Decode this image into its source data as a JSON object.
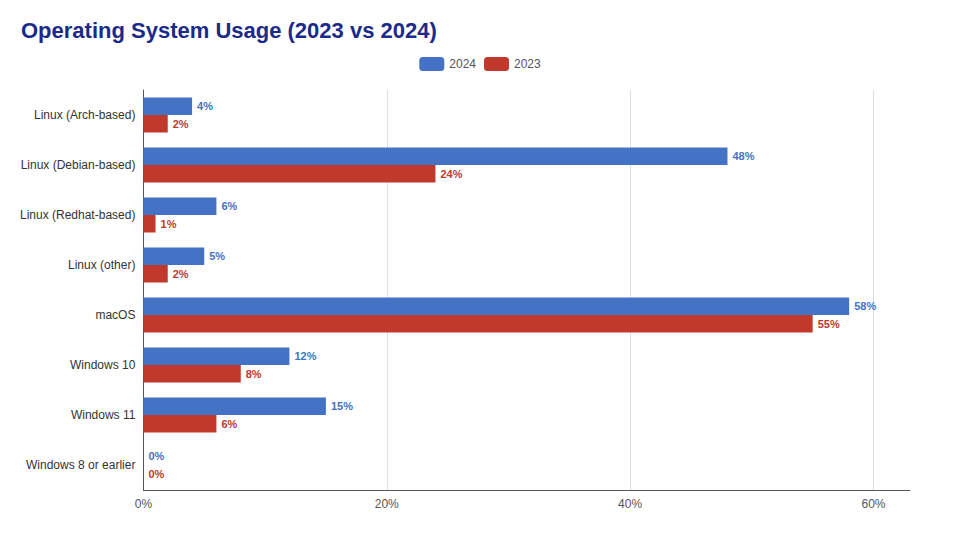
{
  "chart_data": {
    "type": "bar",
    "title": "Operating System Usage (2023 vs 2024)",
    "orientation": "horizontal",
    "categories": [
      "Linux (Arch-based)",
      "Linux (Debian-based)",
      "Linux (Redhat-based)",
      "Linux (other)",
      "macOS",
      "Windows 10",
      "Windows 11",
      "Windows 8 or earlier"
    ],
    "series": [
      {
        "name": "2024",
        "color": "#4472C4",
        "values": [
          4,
          48,
          6,
          5,
          58,
          12,
          15,
          0
        ],
        "value_labels": [
          "4%",
          "48%",
          "6%",
          "5%",
          "58%",
          "12%",
          "15%",
          "0%"
        ]
      },
      {
        "name": "2023",
        "color": "#C0392B",
        "values": [
          2,
          24,
          1,
          2,
          55,
          8,
          6,
          0
        ],
        "value_labels": [
          "2%",
          "24%",
          "1%",
          "2%",
          "55%",
          "8%",
          "6%",
          "0%"
        ]
      }
    ],
    "xlim": [
      0,
      63
    ],
    "xticks": [
      {
        "value": 0,
        "label": "0%"
      },
      {
        "value": 20,
        "label": "20%"
      },
      {
        "value": 40,
        "label": "40%"
      },
      {
        "value": 60,
        "label": "60%"
      }
    ],
    "grid": true,
    "legend": "top",
    "data_labels": true
  }
}
